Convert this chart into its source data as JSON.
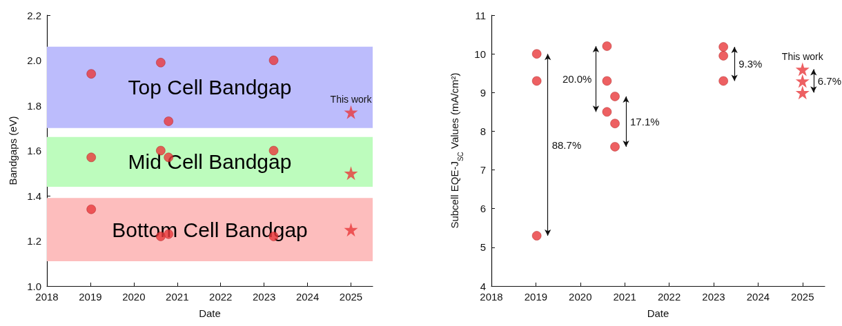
{
  "chart_data": [
    {
      "type": "scatter",
      "xlabel": "Date",
      "ylabel": "Bandgaps (eV)",
      "xlim": [
        2018,
        2025.5
      ],
      "xticks": [
        2018,
        2019,
        2020,
        2021,
        2022,
        2023,
        2024,
        2025
      ],
      "ylim": [
        1.0,
        2.2
      ],
      "yticks": [
        {
          "value": 1,
          "label": "1.0"
        },
        1.2,
        1.4,
        1.6,
        1.8,
        {
          "value": 2,
          "label": "2.0"
        },
        2.2
      ],
      "grid": false,
      "series": [
        {
          "marker": "circle",
          "color": "#e8383b",
          "x": [
            2019.02,
            2019.02,
            2019.02,
            2020.62,
            2020.62,
            2020.62,
            2020.8,
            2020.8,
            2020.8,
            2023.22,
            2023.22,
            2023.22
          ],
          "values": [
            1.94,
            1.57,
            1.34,
            1.99,
            1.6,
            1.22,
            1.73,
            1.57,
            1.23,
            2.0,
            1.6,
            1.22
          ]
        },
        {
          "marker": "star",
          "color": "#e8383b",
          "x": [
            2025,
            2025,
            2025
          ],
          "values": [
            1.77,
            1.5,
            1.25
          ]
        }
      ],
      "bands": [
        {
          "axis": "y",
          "from": 1.7,
          "to": 2.06,
          "label": "Top Cell Bandgap",
          "color": "#bcbcfc"
        },
        {
          "axis": "y",
          "from": 1.44,
          "to": 1.66,
          "label": "Mid Cell Bandgap",
          "color": "#bdfcbd"
        },
        {
          "axis": "y",
          "from": 1.11,
          "to": 1.39,
          "label": "Bottom Cell Bandgap",
          "color": "#fdbdbd"
        }
      ],
      "annotations": [
        {
          "text": "This work",
          "x": 2025,
          "y": 1.77
        }
      ]
    },
    {
      "type": "scatter",
      "xlabel": "Date",
      "ylabel": "Subcell EQE-J$_{SC}$ Values (mA/cm²)",
      "xlim": [
        2018,
        2025.5
      ],
      "xticks": [
        2018,
        2019,
        2020,
        2021,
        2022,
        2023,
        2024,
        2025
      ],
      "ylim": [
        4,
        11
      ],
      "yticks": [
        4,
        5,
        6,
        7,
        8,
        9,
        10,
        11
      ],
      "grid": false,
      "series": [
        {
          "marker": "circle",
          "color": "#e8383b",
          "x": [
            2019.02,
            2019.02,
            2019.02,
            2020.6,
            2020.6,
            2020.6,
            2020.78,
            2020.78,
            2020.78,
            2023.22,
            2023.22,
            2023.22
          ],
          "values": [
            10.0,
            9.3,
            5.3,
            10.2,
            9.3,
            8.5,
            8.9,
            8.2,
            7.6,
            10.18,
            9.95,
            9.3
          ]
        },
        {
          "marker": "star",
          "color": "#e8383b",
          "x": [
            2025,
            2025,
            2025
          ],
          "values": [
            9.6,
            9.3,
            9.0
          ]
        }
      ],
      "annotations": [
        "88.7%",
        "20.0%",
        "17.1%",
        "9.3%",
        "6.7%",
        {
          "text": "This work",
          "x": 2025,
          "y": 9.6
        }
      ]
    }
  ]
}
